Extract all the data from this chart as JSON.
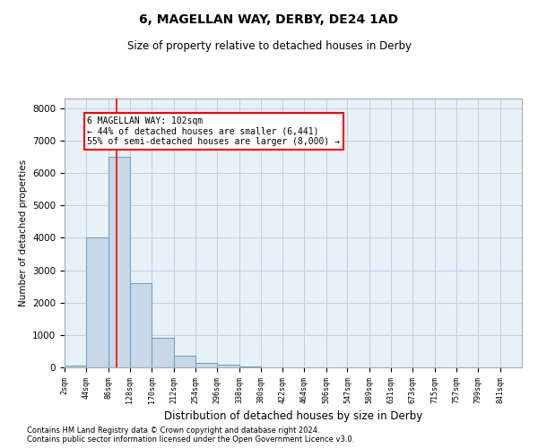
{
  "title1": "6, MAGELLAN WAY, DERBY, DE24 1AD",
  "title2": "Size of property relative to detached houses in Derby",
  "xlabel": "Distribution of detached houses by size in Derby",
  "ylabel": "Number of detached properties",
  "bar_color": "#c8d8e8",
  "bar_edge_color": "#7098b8",
  "bin_labels": [
    "2sqm",
    "44sqm",
    "86sqm",
    "128sqm",
    "170sqm",
    "212sqm",
    "254sqm",
    "296sqm",
    "338sqm",
    "380sqm",
    "422sqm",
    "464sqm",
    "506sqm",
    "547sqm",
    "589sqm",
    "631sqm",
    "673sqm",
    "715sqm",
    "757sqm",
    "799sqm",
    "841sqm"
  ],
  "bar_heights": [
    50,
    4000,
    6500,
    2600,
    900,
    350,
    130,
    70,
    30,
    0,
    0,
    0,
    0,
    0,
    0,
    0,
    0,
    0,
    0,
    0,
    0
  ],
  "property_label": "6 MAGELLAN WAY: 102sqm",
  "pct_smaller": 44,
  "n_smaller": 6441,
  "pct_larger": 55,
  "n_larger": 8000,
  "vline_x": 102,
  "ylim": [
    0,
    8300
  ],
  "bin_starts": [
    2,
    44,
    86,
    128,
    170,
    212,
    254,
    296,
    338,
    380,
    422,
    464,
    506,
    547,
    589,
    631,
    673,
    715,
    757,
    799,
    841
  ],
  "bin_width": 42,
  "background_color": "#ffffff",
  "grid_color": "#c0d0e0",
  "footnote1": "Contains HM Land Registry data © Crown copyright and database right 2024.",
  "footnote2": "Contains public sector information licensed under the Open Government Licence v3.0."
}
